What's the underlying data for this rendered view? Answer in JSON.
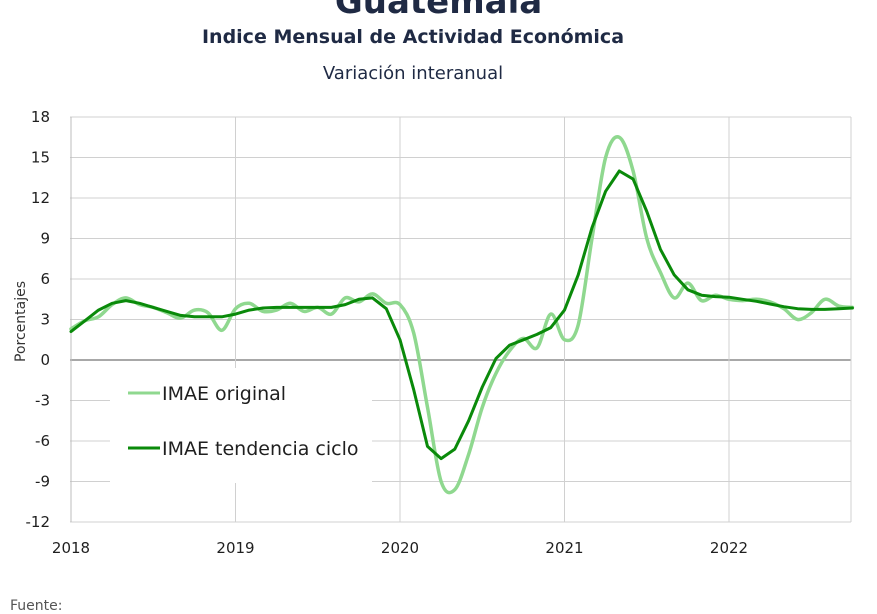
{
  "header": {
    "title": "Guatemala",
    "subtitle": "Indice Mensual de  Actividad Económica",
    "subtitle2": "Variación interanual"
  },
  "footer": {
    "source_label": "Fuente:"
  },
  "chart_data": {
    "type": "line",
    "x_start_year": 2018,
    "ylabel": "Porcentajes",
    "ylim": [
      -12,
      18
    ],
    "yticks": [
      18,
      15,
      12,
      9,
      6,
      3,
      0,
      -3,
      -6,
      -9,
      -12
    ],
    "xtick_labels": [
      "2018",
      "2019",
      "2020",
      "2021",
      "2022"
    ],
    "grid": true,
    "legend_position": "left-middle",
    "series": [
      {
        "name": "IMAE original",
        "color": "#8fd88f",
        "x": [
          2018.0,
          2018.083,
          2018.167,
          2018.25,
          2018.333,
          2018.417,
          2018.5,
          2018.583,
          2018.667,
          2018.75,
          2018.833,
          2018.917,
          2019.0,
          2019.083,
          2019.167,
          2019.25,
          2019.333,
          2019.417,
          2019.5,
          2019.583,
          2019.667,
          2019.75,
          2019.833,
          2019.917,
          2020.0,
          2020.083,
          2020.167,
          2020.25,
          2020.333,
          2020.417,
          2020.5,
          2020.583,
          2020.667,
          2020.75,
          2020.833,
          2020.917,
          2021.0,
          2021.083,
          2021.167,
          2021.25,
          2021.333,
          2021.417,
          2021.5,
          2021.583,
          2021.667,
          2021.75,
          2021.833,
          2021.917,
          2022.0,
          2022.083,
          2022.167,
          2022.25,
          2022.333,
          2022.417,
          2022.5,
          2022.583,
          2022.667,
          2022.75
        ],
        "values": [
          2.3,
          2.9,
          3.2,
          4.1,
          4.6,
          4.1,
          3.9,
          3.5,
          3.1,
          3.7,
          3.5,
          2.2,
          3.8,
          4.2,
          3.6,
          3.7,
          4.2,
          3.6,
          3.9,
          3.4,
          4.6,
          4.3,
          4.9,
          4.2,
          4.1,
          2.0,
          -3.5,
          -9.0,
          -9.6,
          -7.0,
          -3.5,
          -1.0,
          0.7,
          1.6,
          0.9,
          3.4,
          1.5,
          2.6,
          9.0,
          15.0,
          16.5,
          14.0,
          9.0,
          6.5,
          4.6,
          5.7,
          4.4,
          4.8,
          4.5,
          4.4,
          4.5,
          4.3,
          3.8,
          3.0,
          3.5,
          4.5,
          4.0,
          3.9
        ]
      },
      {
        "name": "IMAE tendencia ciclo",
        "color": "#0a8a0a",
        "x": [
          2018.0,
          2018.083,
          2018.167,
          2018.25,
          2018.333,
          2018.417,
          2018.5,
          2018.583,
          2018.667,
          2018.75,
          2018.833,
          2018.917,
          2019.0,
          2019.083,
          2019.167,
          2019.25,
          2019.333,
          2019.417,
          2019.5,
          2019.583,
          2019.667,
          2019.75,
          2019.833,
          2019.917,
          2020.0,
          2020.083,
          2020.167,
          2020.25,
          2020.333,
          2020.417,
          2020.5,
          2020.583,
          2020.667,
          2020.75,
          2020.833,
          2020.917,
          2021.0,
          2021.083,
          2021.167,
          2021.25,
          2021.333,
          2021.417,
          2021.5,
          2021.583,
          2021.667,
          2021.75,
          2021.833,
          2021.917,
          2022.0,
          2022.083,
          2022.167,
          2022.25,
          2022.333,
          2022.417,
          2022.5,
          2022.583,
          2022.667,
          2022.75
        ],
        "values": [
          2.1,
          2.9,
          3.7,
          4.2,
          4.4,
          4.2,
          3.9,
          3.6,
          3.3,
          3.2,
          3.2,
          3.2,
          3.4,
          3.7,
          3.85,
          3.9,
          3.9,
          3.9,
          3.9,
          3.9,
          4.1,
          4.5,
          4.6,
          3.8,
          1.5,
          -2.2,
          -6.4,
          -7.3,
          -6.6,
          -4.5,
          -2.0,
          0.1,
          1.1,
          1.5,
          1.9,
          2.4,
          3.7,
          6.3,
          9.8,
          12.5,
          14.0,
          13.4,
          11.0,
          8.2,
          6.3,
          5.2,
          4.8,
          4.7,
          4.65,
          4.5,
          4.35,
          4.15,
          3.95,
          3.8,
          3.75,
          3.75,
          3.8,
          3.85
        ]
      }
    ]
  }
}
